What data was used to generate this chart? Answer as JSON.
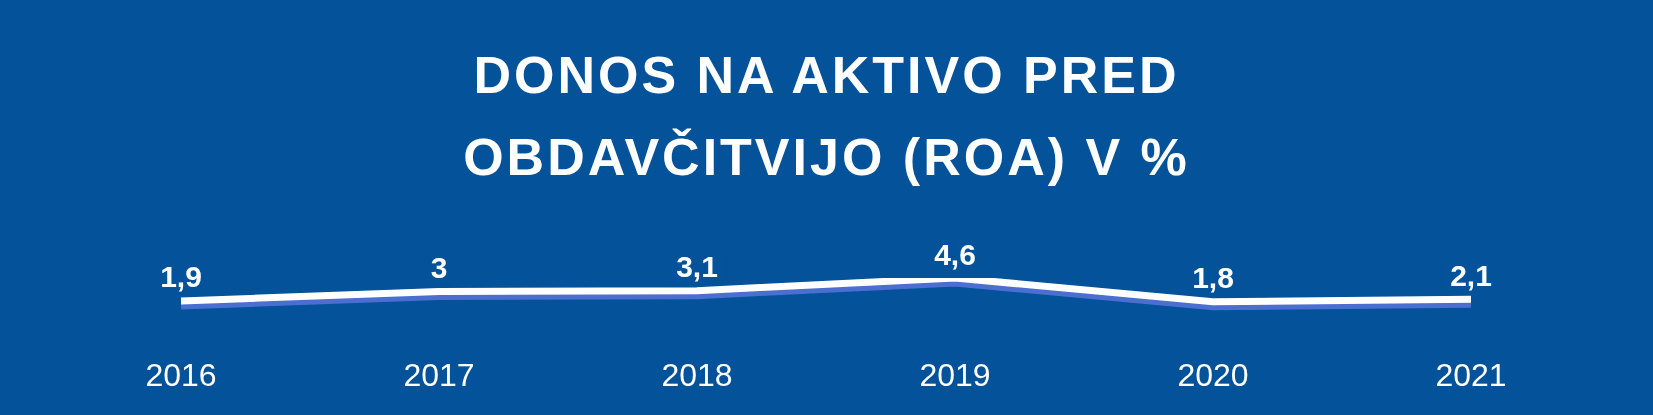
{
  "chart_data": {
    "type": "line",
    "title": "DONOS NA AKTIVO PRED OBDAVČITVIJO (ROA) V %",
    "categories": [
      "2016",
      "2017",
      "2018",
      "2019",
      "2020",
      "2021"
    ],
    "series": [
      {
        "color": "#ffffff",
        "values": [
          1.9,
          3,
          3.1,
          4.6,
          1.8,
          2.1
        ],
        "value_labels": [
          "1,9",
          "3",
          "3,1",
          "4,6",
          "1,8",
          "2,1"
        ]
      }
    ],
    "tick_labels": "x",
    "legend": false,
    "grid": false,
    "marker": "none",
    "line_style": "solid"
  }
}
